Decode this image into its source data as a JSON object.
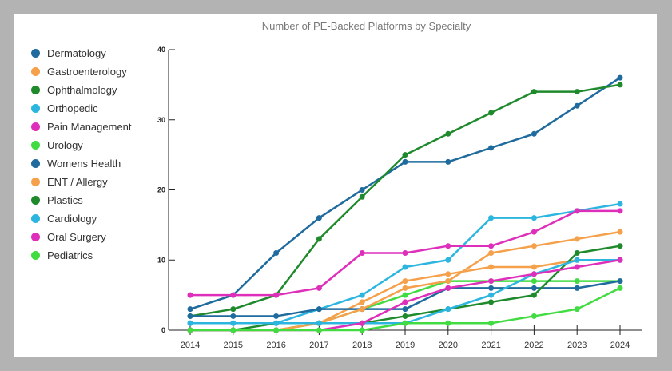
{
  "chart_data": {
    "type": "line",
    "title": "Number of PE-Backed Platforms by Specialty",
    "xlabel": "",
    "ylabel": "",
    "x": [
      2014,
      2015,
      2016,
      2017,
      2018,
      2019,
      2020,
      2021,
      2022,
      2023,
      2024
    ],
    "ylim": [
      0,
      40
    ],
    "yticks": [
      0,
      10,
      20,
      30,
      40
    ],
    "grid": false,
    "legend": "left",
    "series": [
      {
        "name": "Dermatology",
        "color": "#1f6b9e",
        "values": [
          3,
          5,
          11,
          16,
          20,
          24,
          24,
          26,
          28,
          32,
          36
        ]
      },
      {
        "name": "Gastroenterology",
        "color": "#f5a04a",
        "values": [
          0,
          0,
          0,
          1,
          4,
          7,
          8,
          9,
          9,
          10,
          10
        ]
      },
      {
        "name": "Ophthalmology",
        "color": "#1e8a2c",
        "values": [
          2,
          3,
          5,
          13,
          19,
          25,
          28,
          31,
          34,
          34,
          35
        ]
      },
      {
        "name": "Orthopedic",
        "color": "#2cb6df",
        "values": [
          1,
          1,
          1,
          3,
          5,
          9,
          10,
          16,
          16,
          17,
          18
        ]
      },
      {
        "name": "Pain Management",
        "color": "#de2fbb",
        "values": [
          5,
          5,
          5,
          6,
          11,
          11,
          12,
          12,
          14,
          17,
          17
        ]
      },
      {
        "name": "Urology",
        "color": "#42dc42",
        "values": [
          0,
          0,
          0,
          1,
          3,
          5,
          7,
          7,
          7,
          7,
          7
        ]
      },
      {
        "name": "Womens Health",
        "color": "#1f6b9e",
        "values": [
          2,
          2,
          2,
          3,
          3,
          3,
          6,
          6,
          6,
          6,
          7
        ]
      },
      {
        "name": "ENT / Allergy",
        "color": "#f5a04a",
        "values": [
          0,
          0,
          0,
          1,
          3,
          6,
          7,
          11,
          12,
          13,
          14
        ]
      },
      {
        "name": "Plastics",
        "color": "#1e8a2c",
        "values": [
          0,
          0,
          1,
          1,
          1,
          2,
          3,
          4,
          5,
          11,
          12
        ]
      },
      {
        "name": "Cardiology",
        "color": "#2cb6df",
        "values": [
          1,
          1,
          1,
          1,
          1,
          1,
          3,
          5,
          8,
          10,
          10
        ]
      },
      {
        "name": "Oral Surgery",
        "color": "#de2fbb",
        "values": [
          0,
          0,
          0,
          0,
          1,
          4,
          6,
          7,
          8,
          9,
          10
        ]
      },
      {
        "name": "Pediatrics",
        "color": "#42dc42",
        "values": [
          0,
          0,
          0,
          0,
          0,
          1,
          1,
          1,
          2,
          3,
          6
        ]
      }
    ]
  }
}
